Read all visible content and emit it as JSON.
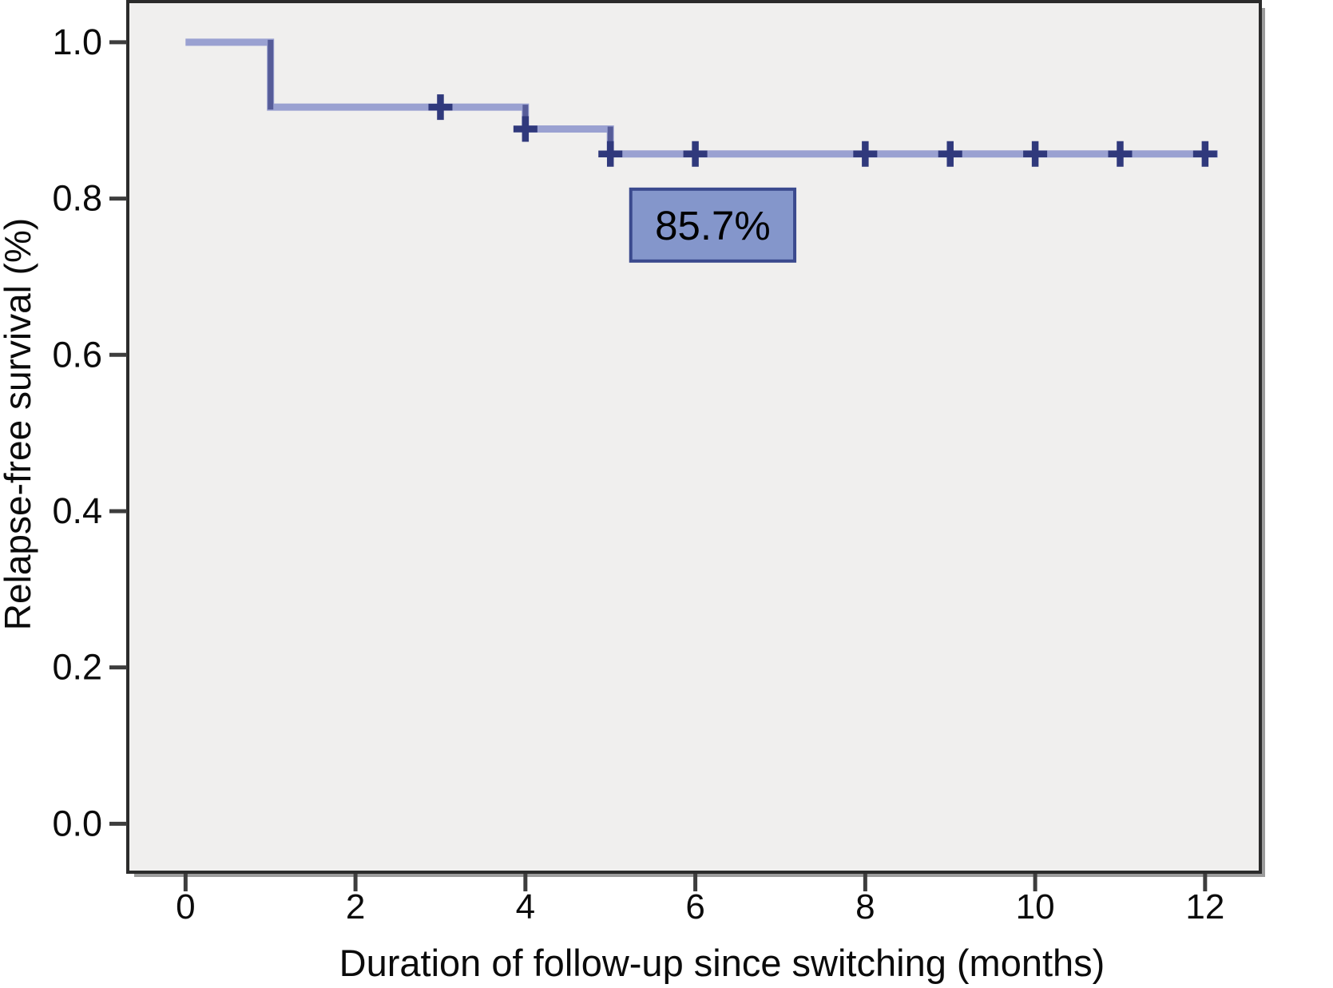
{
  "figure": {
    "background": "#ffffff",
    "plot_background": "#f0efee",
    "frame_color": "#2b2b2b",
    "frame_shadow_color": "#9c9c9c",
    "tick_color": "#3d3d3d",
    "text_color": "#0b0b0b"
  },
  "chart_data": {
    "type": "line",
    "chart_style": "kaplan-meier-step",
    "title": "",
    "xlabel": "Duration of follow-up since switching (months)",
    "ylabel": "Relapse-free survival (%)",
    "x_ticks": [
      "0",
      "2",
      "4",
      "6",
      "8",
      "10",
      "12"
    ],
    "y_ticks": [
      "0.0",
      "0.2",
      "0.4",
      "0.6",
      "0.8",
      "1.0"
    ],
    "xlim": [
      -0.68,
      12.65
    ],
    "ylim": [
      -0.062,
      1.052
    ],
    "grid": false,
    "legend_position": "none",
    "series": [
      {
        "name": "relapse-free-survival",
        "line_color": "#9aa1d1",
        "step_riser_color": "#565c99",
        "censor_color": "#30397c",
        "steps": [
          [
            0.0,
            1.0
          ],
          [
            1.0,
            1.0
          ],
          [
            1.0,
            0.917
          ],
          [
            4.0,
            0.917
          ],
          [
            4.0,
            0.889
          ],
          [
            5.0,
            0.889
          ],
          [
            5.0,
            0.857
          ],
          [
            12.15,
            0.857
          ]
        ],
        "censor_marks": [
          [
            3,
            0.917
          ],
          [
            4,
            0.889
          ],
          [
            5,
            0.857
          ],
          [
            6,
            0.857
          ],
          [
            8,
            0.857
          ],
          [
            9,
            0.857
          ],
          [
            10,
            0.857
          ],
          [
            11,
            0.857
          ],
          [
            12,
            0.857
          ]
        ]
      }
    ],
    "annotation": {
      "label": "85.7%",
      "x_range": [
        5.24,
        7.17
      ],
      "y_range": [
        0.72,
        0.812
      ],
      "fill": "#8496cb",
      "border_color": "#3b4a8e",
      "text_color": "#000000"
    }
  }
}
